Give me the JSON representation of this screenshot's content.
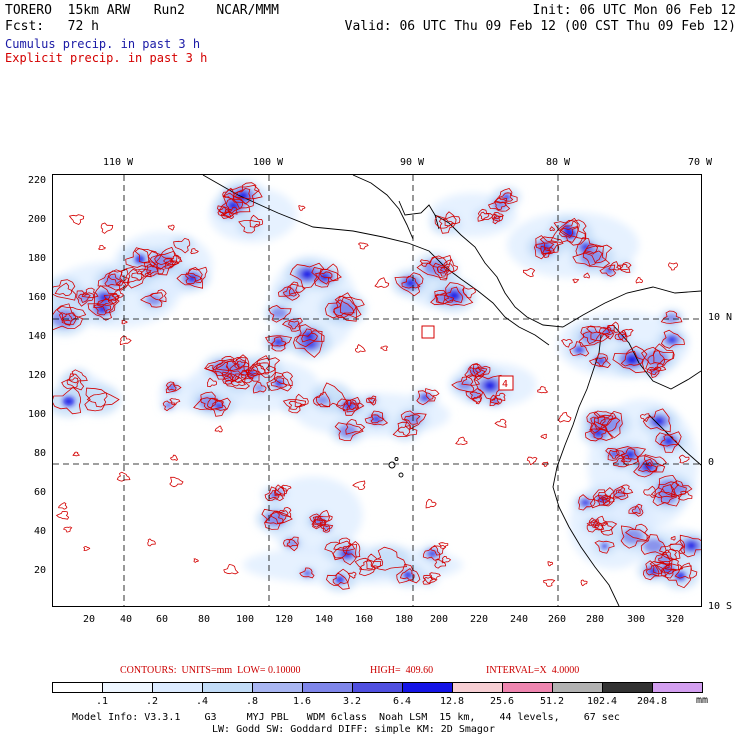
{
  "header": {
    "model_title": "TORERO  15km ARW   Run2    NCAR/MMM",
    "init_time": "Init: 06 UTC Mon 06 Feb 12",
    "forecast_hour": "Fcst:   72 h",
    "valid_time": "Valid: 06 UTC Thu 09 Feb 12 (00 CST Thu 09 Feb 12)",
    "field_cumulus": "Cumulus precip. in past 3 h",
    "field_explicit": "Explicit precip. in past 3 h",
    "cumulus_color": "#1a1aa6",
    "explicit_color": "#d40000"
  },
  "map": {
    "top_lon_labels": [
      "110 W",
      "100 W",
      "90 W",
      "80 W",
      "70 W"
    ],
    "left_y_labels": [
      "220",
      "200",
      "180",
      "160",
      "140",
      "120",
      "100",
      "80",
      "60",
      "40",
      "20"
    ],
    "bottom_x_labels": [
      "20",
      "40",
      "60",
      "80",
      "100",
      "120",
      "140",
      "160",
      "180",
      "200",
      "220",
      "240",
      "260",
      "280",
      "300",
      "320"
    ],
    "right_lat_labels": [
      "10 N",
      "0",
      "10 S"
    ],
    "box_labels": [
      "4"
    ]
  },
  "contours": {
    "label": "CONTOURS:  UNITS=mm  LOW= 0.10000",
    "high": "HIGH=  409.60",
    "interval": "INTERVAL=X  4.0000"
  },
  "colorbar": {
    "labels": [
      ".1",
      ".2",
      ".4",
      ".8",
      "1.6",
      "3.2",
      "6.4",
      "12.8",
      "25.6",
      "51.2",
      "102.4",
      "204.8"
    ],
    "unit": "mm",
    "colors": [
      "#ffffff",
      "#eef6ff",
      "#dcebff",
      "#c2dcf7",
      "#a9b6f2",
      "#7f86ea",
      "#4f4fe0",
      "#1414e6",
      "#f7cfd4",
      "#ef86b0",
      "#b2b2b2",
      "#333333",
      "#d39ff0"
    ]
  },
  "footer": {
    "line1": "Model Info: V3.3.1    G3     MYJ PBL   WDM 6class  Noah LSM  15 km,    44 levels,    67 sec",
    "line2": "LW: Godd SW: Goddard DIFF: simple KM: 2D Smagor"
  }
}
